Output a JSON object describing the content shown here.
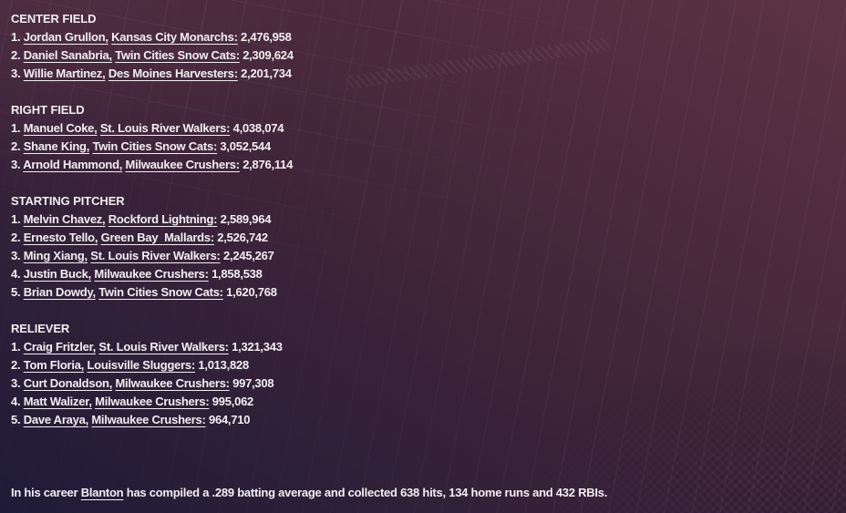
{
  "theme": {
    "text-color": "#f2eef1",
    "bg-top-left": "#4a2b3d",
    "bg-top-right": "#5d3343",
    "bg-mid": "#3f2439",
    "bg-bottom-left": "#1e1b38",
    "bg-bottom-right": "#372036"
  },
  "sections": [
    {
      "title": "CENTER FIELD",
      "entries": [
        {
          "rank": "1.",
          "player": "Jordan Grullon,",
          "team": "Kansas City Monarchs:",
          "votes": "2,476,958"
        },
        {
          "rank": "2.",
          "player": "Daniel Sanabria,",
          "team": "Twin Cities Snow Cats:",
          "votes": "2,309,624"
        },
        {
          "rank": "3.",
          "player": "Willie Martinez,",
          "team": "Des Moines Harvesters:",
          "votes": "2,201,734"
        }
      ]
    },
    {
      "title": "RIGHT FIELD",
      "entries": [
        {
          "rank": "1.",
          "player": "Manuel Coke,",
          "team": "St. Louis River Walkers:",
          "votes": "4,038,074"
        },
        {
          "rank": "2.",
          "player": "Shane King,",
          "team": "Twin Cities Snow Cats:",
          "votes": "3,052,544"
        },
        {
          "rank": "3.",
          "player": "Arnold Hammond,",
          "team": "Milwaukee Crushers:",
          "votes": "2,876,114"
        }
      ]
    },
    {
      "title": "STARTING PITCHER",
      "entries": [
        {
          "rank": "1.",
          "player": "Melvin Chavez,",
          "team": "Rockford Lightning:",
          "votes": "2,589,964"
        },
        {
          "rank": "2.",
          "player": "Ernesto Tello,",
          "team": "Green Bay  Mallards:",
          "votes": "2,526,742"
        },
        {
          "rank": "3.",
          "player": "Ming Xiang,",
          "team": "St. Louis River Walkers:",
          "votes": "2,245,267"
        },
        {
          "rank": "4.",
          "player": "Justin Buck,",
          "team": "Milwaukee Crushers:",
          "votes": "1,858,538"
        },
        {
          "rank": "5.",
          "player": "Brian Dowdy,",
          "team": "Twin Cities Snow Cats:",
          "votes": "1,620,768"
        }
      ]
    },
    {
      "title": "RELIEVER",
      "entries": [
        {
          "rank": "1.",
          "player": "Craig Fritzler,",
          "team": "St. Louis River Walkers:",
          "votes": "1,321,343"
        },
        {
          "rank": "2.",
          "player": "Tom Floria,",
          "team": "Louisville Sluggers:",
          "votes": "1,013,828"
        },
        {
          "rank": "3.",
          "player": "Curt Donaldson,",
          "team": "Milwaukee Crushers:",
          "votes": "997,308"
        },
        {
          "rank": "4.",
          "player": "Matt Walizer,",
          "team": "Milwaukee Crushers:",
          "votes": "995,062"
        },
        {
          "rank": "5.",
          "player": "Dave Araya,",
          "team": "Milwaukee Crushers:",
          "votes": "964,710"
        }
      ]
    }
  ],
  "footer": {
    "prefix": "In his career",
    "link": "Blanton",
    "suffix": "has compiled a .289 batting average and collected 638 hits, 134 home runs and 432 RBIs."
  }
}
